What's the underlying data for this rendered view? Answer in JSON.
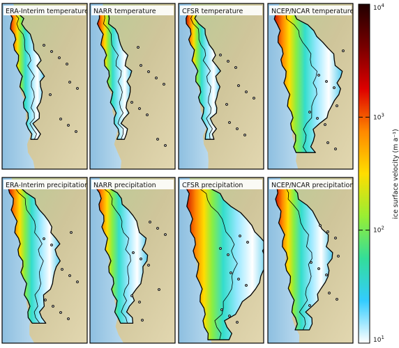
{
  "figure": {
    "panels": [
      {
        "title": "ERA-Interim temperature",
        "extent": "narrow"
      },
      {
        "title": "NARR temperature",
        "extent": "narrow"
      },
      {
        "title": "CFSR temperature",
        "extent": "narrow"
      },
      {
        "title": "NCEP/NCAR temperature",
        "extent": "wide"
      },
      {
        "title": "ERA-Interim precipitation",
        "extent": "medium"
      },
      {
        "title": "NARR precipitation",
        "extent": "medium"
      },
      {
        "title": "CFSR precipitation",
        "extent": "widest"
      },
      {
        "title": "NCEP/NCAR precipitation",
        "extent": "medium-wide"
      }
    ],
    "colorbar": {
      "title": "ice surface velocity (m a⁻¹)",
      "ticks": [
        {
          "base": "10",
          "exp": "1",
          "value": 10
        },
        {
          "base": "10",
          "exp": "2",
          "value": 100
        },
        {
          "base": "10",
          "exp": "3",
          "value": 1000
        },
        {
          "base": "10",
          "exp": "4",
          "value": 10000
        }
      ],
      "scale": "log",
      "colors": [
        "#ffffff",
        "#33ccff",
        "#33dd99",
        "#99ee33",
        "#ffdd00",
        "#ff8800",
        "#dd0000",
        "#770000",
        "#220000"
      ]
    },
    "colors": {
      "ocean": "#a9cfe8",
      "land_low": "#b8cf9a",
      "land_mid": "#cfc69b",
      "land_high": "#e3d9b5",
      "ice_outline": "#000000"
    }
  }
}
